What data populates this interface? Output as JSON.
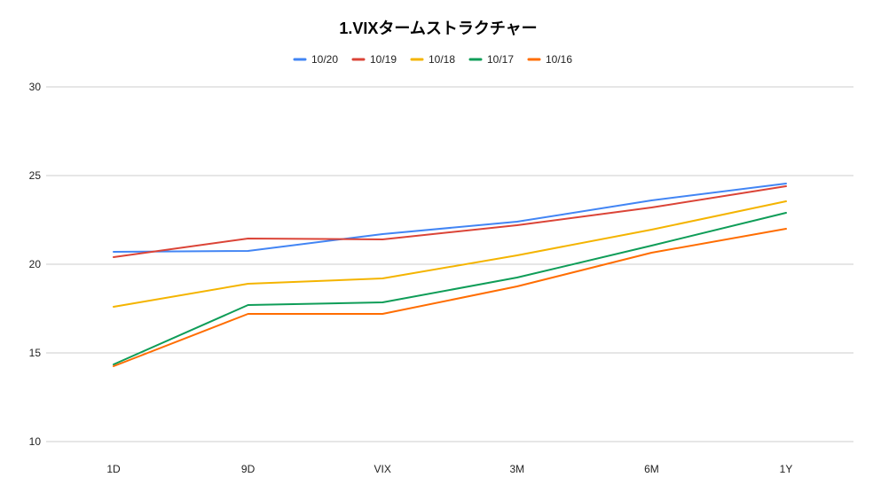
{
  "chart_data": {
    "type": "line",
    "title": "1.VIXタームストラクチャー",
    "xlabel": "",
    "ylabel": "",
    "categories": [
      "1D",
      "9D",
      "VIX",
      "3M",
      "6M",
      "1Y"
    ],
    "ylim": [
      10,
      30
    ],
    "yticks": [
      10,
      15,
      20,
      25,
      30
    ],
    "grid": true,
    "legend_position": "top",
    "series": [
      {
        "name": "10/20",
        "color": "#4285f4",
        "values": [
          20.7,
          20.75,
          21.7,
          22.4,
          23.6,
          24.55
        ]
      },
      {
        "name": "10/19",
        "color": "#db4437",
        "values": [
          20.4,
          21.45,
          21.4,
          22.2,
          23.2,
          24.4
        ]
      },
      {
        "name": "10/18",
        "color": "#f4b400",
        "values": [
          17.6,
          18.9,
          19.2,
          20.5,
          21.95,
          23.55
        ]
      },
      {
        "name": "10/17",
        "color": "#0f9d58",
        "values": [
          14.35,
          17.7,
          17.85,
          19.25,
          21.05,
          22.9
        ]
      },
      {
        "name": "10/16",
        "color": "#ff6d01",
        "values": [
          14.25,
          17.2,
          17.2,
          18.75,
          20.65,
          22.0
        ]
      }
    ]
  }
}
